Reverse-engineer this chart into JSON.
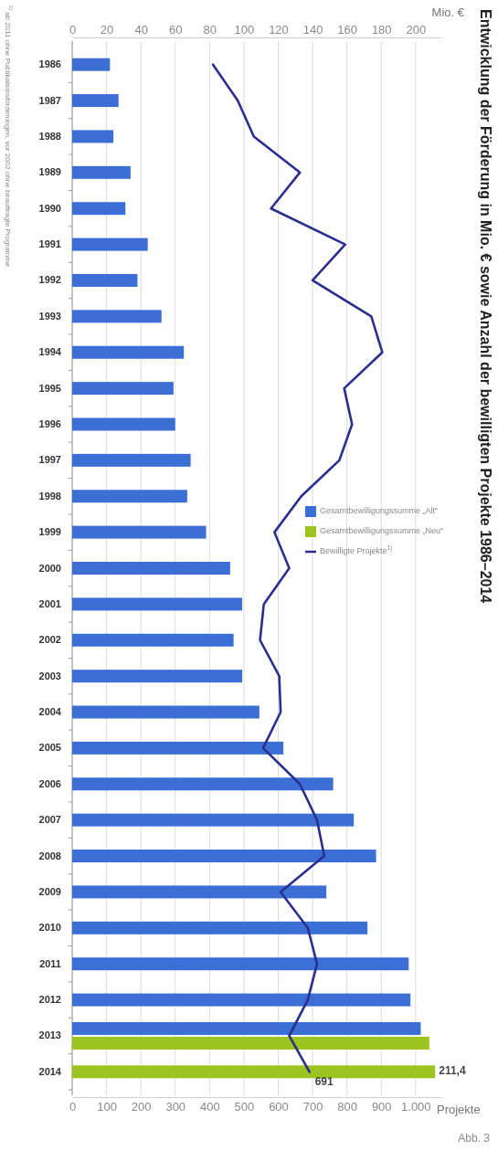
{
  "chart_data": {
    "type": "bar",
    "orientation": "horizontal",
    "title": "Entwicklung der Förderung in Mio. € sowie Anzahl der bewilligten Projekte 1986–2014",
    "xlabel": "Mio. €",
    "x2label": "Projekte",
    "annotations": [
      "Abb. 3",
      "$^{1)}$ ab 2011 ohne Publikationsförderungen, vor 2002 ohne beauftragte Programme"
    ],
    "categories": [
      "1986",
      "1987",
      "1988",
      "1989",
      "1990",
      "1991",
      "1992",
      "1993",
      "1994",
      "1995",
      "1996",
      "1997",
      "1998",
      "1999",
      "2000",
      "2001",
      "2002",
      "2003",
      "2004",
      "2005",
      "2006",
      "2007",
      "2008",
      "2009",
      "2010",
      "2011",
      "2012",
      "2013",
      "2014"
    ],
    "series": [
      {
        "name": "Gesamtbewilligungssumme „Alt“",
        "color": "#3b6fd6",
        "values": [
          22,
          27,
          24,
          34,
          31,
          44,
          38,
          52,
          65,
          59,
          60,
          69,
          67,
          78,
          92,
          99,
          94,
          99,
          109,
          123,
          152,
          164,
          177,
          148,
          172,
          196,
          197,
          203,
          null
        ]
      },
      {
        "name": "Gesamtbewilligungssumme „Neu“",
        "color": "#9cc41e",
        "values": [
          null,
          null,
          null,
          null,
          null,
          null,
          null,
          null,
          null,
          null,
          null,
          null,
          null,
          null,
          null,
          null,
          null,
          null,
          null,
          null,
          null,
          null,
          null,
          null,
          null,
          null,
          null,
          208,
          211.4
        ],
        "value_labels": [
          null,
          null,
          null,
          null,
          null,
          null,
          null,
          null,
          null,
          null,
          null,
          null,
          null,
          null,
          null,
          null,
          null,
          null,
          null,
          null,
          null,
          null,
          null,
          null,
          null,
          null,
          null,
          null,
          "211,4"
        ]
      },
      {
        "name": "Bewilligte Projekte$^{1)}$",
        "type": "line",
        "axis": "x2",
        "color": "#2a2f8f",
        "values": [
          410,
          482,
          529,
          663,
          579,
          795,
          700,
          871,
          903,
          792,
          815,
          778,
          667,
          589,
          632,
          558,
          547,
          603,
          607,
          556,
          663,
          713,
          734,
          607,
          686,
          713,
          686,
          632,
          691
        ],
        "value_labels": [
          null,
          null,
          null,
          null,
          null,
          null,
          null,
          null,
          null,
          null,
          null,
          null,
          null,
          null,
          null,
          null,
          null,
          null,
          null,
          null,
          null,
          null,
          null,
          null,
          null,
          null,
          null,
          null,
          "691"
        ]
      }
    ],
    "xlim": [
      0,
      215
    ],
    "xticks": [
      0,
      20,
      40,
      60,
      80,
      100,
      120,
      140,
      160,
      180,
      200
    ],
    "x2lim": [
      0,
      1075
    ],
    "x2ticks": [
      0,
      100,
      200,
      300,
      400,
      500,
      600,
      700,
      800,
      900,
      {
        "value": 1000,
        "label": "1.000"
      }
    ],
    "grid": "x",
    "legend": "top right"
  }
}
